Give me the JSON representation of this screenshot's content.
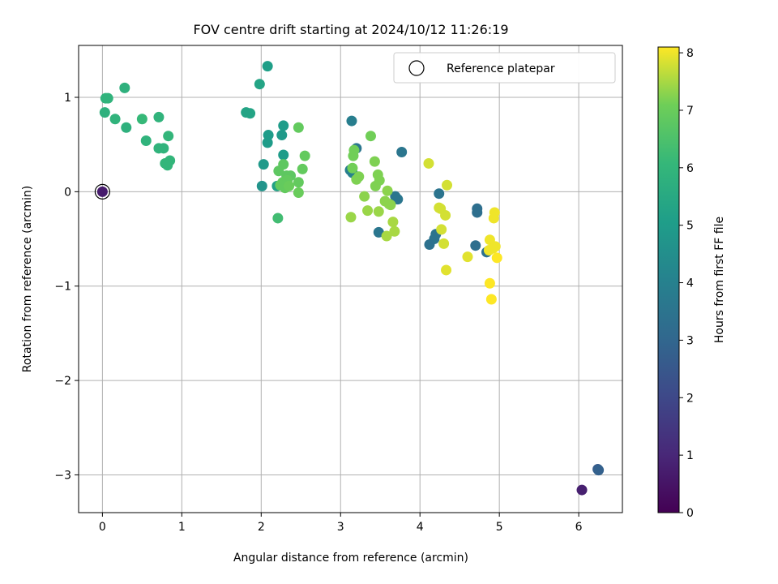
{
  "chart_data": {
    "type": "scatter",
    "title": "FOV centre drift starting at 2024/10/12 11:26:19",
    "xlabel": "Angular distance from reference (arcmin)",
    "ylabel": "Rotation from reference (arcmin)",
    "xlim": [
      -0.3,
      6.55
    ],
    "ylim": [
      -3.4,
      1.55
    ],
    "xticks": [
      0,
      1,
      2,
      3,
      4,
      5,
      6
    ],
    "xtick_labels": [
      "0",
      "1",
      "2",
      "3",
      "4",
      "5",
      "6"
    ],
    "yticks": [
      -3,
      -2,
      -1,
      0,
      1
    ],
    "ytick_labels": [
      "−3",
      "−2",
      "−1",
      "0",
      "1"
    ],
    "grid": true,
    "legend": {
      "position": "top-right",
      "entries": [
        "Reference platepar"
      ]
    },
    "reference_point": {
      "x": 0,
      "y": 0,
      "hours": 0.7
    },
    "colorbar": {
      "label": "Hours from first FF file",
      "range": [
        0,
        8.1
      ],
      "ticks": [
        0,
        1,
        2,
        3,
        4,
        5,
        6,
        7,
        8
      ],
      "tick_labels": [
        "0",
        "1",
        "2",
        "3",
        "4",
        "5",
        "6",
        "7",
        "8"
      ],
      "colormap": "viridis"
    },
    "points": [
      {
        "x": 6.04,
        "y": -3.16,
        "hours": 0.8
      },
      {
        "x": 6.24,
        "y": -2.94,
        "hours": 2.6
      },
      {
        "x": 6.25,
        "y": -2.95,
        "hours": 2.8
      },
      {
        "x": 4.72,
        "y": -0.18,
        "hours": 3.3
      },
      {
        "x": 4.72,
        "y": -0.22,
        "hours": 3.3
      },
      {
        "x": 4.7,
        "y": -0.57,
        "hours": 3.3
      },
      {
        "x": 4.84,
        "y": -0.64,
        "hours": 3.4
      },
      {
        "x": 4.24,
        "y": -0.02,
        "hours": 3.5
      },
      {
        "x": 4.2,
        "y": -0.45,
        "hours": 3.5
      },
      {
        "x": 4.18,
        "y": -0.5,
        "hours": 3.5
      },
      {
        "x": 4.12,
        "y": -0.56,
        "hours": 3.4
      },
      {
        "x": 3.77,
        "y": 0.42,
        "hours": 3.6
      },
      {
        "x": 3.69,
        "y": -0.05,
        "hours": 3.6
      },
      {
        "x": 3.72,
        "y": -0.08,
        "hours": 3.6
      },
      {
        "x": 3.48,
        "y": -0.43,
        "hours": 3.6
      },
      {
        "x": 3.2,
        "y": 0.46,
        "hours": 3.6
      },
      {
        "x": 3.14,
        "y": 0.75,
        "hours": 3.9
      },
      {
        "x": 3.12,
        "y": 0.23,
        "hours": 3.9
      },
      {
        "x": 3.15,
        "y": 0.2,
        "hours": 4.0
      },
      {
        "x": 2.01,
        "y": 0.06,
        "hours": 4.7
      },
      {
        "x": 2.03,
        "y": 0.29,
        "hours": 4.9
      },
      {
        "x": 2.08,
        "y": 0.52,
        "hours": 5.0
      },
      {
        "x": 2.09,
        "y": 0.6,
        "hours": 5.0
      },
      {
        "x": 2.26,
        "y": 0.6,
        "hours": 4.9
      },
      {
        "x": 2.28,
        "y": 0.7,
        "hours": 5.0
      },
      {
        "x": 2.28,
        "y": 0.39,
        "hours": 5.0
      },
      {
        "x": 2.2,
        "y": 0.06,
        "hours": 5.2
      },
      {
        "x": 2.08,
        "y": 1.33,
        "hours": 5.1
      },
      {
        "x": 1.98,
        "y": 1.14,
        "hours": 5.3
      },
      {
        "x": 1.81,
        "y": 0.84,
        "hours": 5.3
      },
      {
        "x": 1.86,
        "y": 0.83,
        "hours": 5.3
      },
      {
        "x": 0.28,
        "y": 1.1,
        "hours": 5.8
      },
      {
        "x": 0.04,
        "y": 0.99,
        "hours": 5.9
      },
      {
        "x": 0.07,
        "y": 0.99,
        "hours": 5.9
      },
      {
        "x": 0.03,
        "y": 0.84,
        "hours": 5.8
      },
      {
        "x": 0.16,
        "y": 0.77,
        "hours": 5.9
      },
      {
        "x": 0.3,
        "y": 0.68,
        "hours": 5.8
      },
      {
        "x": 0.5,
        "y": 0.77,
        "hours": 6.1
      },
      {
        "x": 0.71,
        "y": 0.79,
        "hours": 5.9
      },
      {
        "x": 0.55,
        "y": 0.54,
        "hours": 5.9
      },
      {
        "x": 0.71,
        "y": 0.46,
        "hours": 5.9
      },
      {
        "x": 0.77,
        "y": 0.46,
        "hours": 5.9
      },
      {
        "x": 0.83,
        "y": 0.59,
        "hours": 6.0
      },
      {
        "x": 0.85,
        "y": 0.33,
        "hours": 6.0
      },
      {
        "x": 0.82,
        "y": 0.28,
        "hours": 6.0
      },
      {
        "x": 0.79,
        "y": 0.3,
        "hours": 6.0
      },
      {
        "x": 2.21,
        "y": -0.28,
        "hours": 6.3
      },
      {
        "x": 2.47,
        "y": 0.68,
        "hours": 6.9
      },
      {
        "x": 2.55,
        "y": 0.38,
        "hours": 6.9
      },
      {
        "x": 2.52,
        "y": 0.24,
        "hours": 6.9
      },
      {
        "x": 2.28,
        "y": 0.29,
        "hours": 6.8
      },
      {
        "x": 2.22,
        "y": 0.22,
        "hours": 6.8
      },
      {
        "x": 2.32,
        "y": 0.17,
        "hours": 6.8
      },
      {
        "x": 2.37,
        "y": 0.17,
        "hours": 6.8
      },
      {
        "x": 2.27,
        "y": 0.1,
        "hours": 6.9
      },
      {
        "x": 2.33,
        "y": 0.12,
        "hours": 6.9
      },
      {
        "x": 2.24,
        "y": 0.07,
        "hours": 6.9
      },
      {
        "x": 2.3,
        "y": 0.04,
        "hours": 6.9
      },
      {
        "x": 2.35,
        "y": 0.06,
        "hours": 7.0
      },
      {
        "x": 2.47,
        "y": 0.1,
        "hours": 6.9
      },
      {
        "x": 2.47,
        "y": -0.01,
        "hours": 7.0
      },
      {
        "x": 3.38,
        "y": 0.59,
        "hours": 7.1
      },
      {
        "x": 3.17,
        "y": 0.44,
        "hours": 7.1
      },
      {
        "x": 3.16,
        "y": 0.38,
        "hours": 7.1
      },
      {
        "x": 3.15,
        "y": 0.25,
        "hours": 7.1
      },
      {
        "x": 3.43,
        "y": 0.32,
        "hours": 7.2
      },
      {
        "x": 3.47,
        "y": 0.18,
        "hours": 7.2
      },
      {
        "x": 3.49,
        "y": 0.12,
        "hours": 7.2
      },
      {
        "x": 3.2,
        "y": 0.13,
        "hours": 7.2
      },
      {
        "x": 3.23,
        "y": 0.16,
        "hours": 7.2
      },
      {
        "x": 3.44,
        "y": 0.06,
        "hours": 7.2
      },
      {
        "x": 3.59,
        "y": 0.01,
        "hours": 7.3
      },
      {
        "x": 3.3,
        "y": -0.05,
        "hours": 7.3
      },
      {
        "x": 3.56,
        "y": -0.1,
        "hours": 7.3
      },
      {
        "x": 3.61,
        "y": -0.13,
        "hours": 7.3
      },
      {
        "x": 3.63,
        "y": -0.14,
        "hours": 7.3
      },
      {
        "x": 3.34,
        "y": -0.2,
        "hours": 7.4
      },
      {
        "x": 3.48,
        "y": -0.21,
        "hours": 7.4
      },
      {
        "x": 3.13,
        "y": -0.27,
        "hours": 7.4
      },
      {
        "x": 3.66,
        "y": -0.32,
        "hours": 7.5
      },
      {
        "x": 3.68,
        "y": -0.42,
        "hours": 7.5
      },
      {
        "x": 3.58,
        "y": -0.47,
        "hours": 7.5
      },
      {
        "x": 4.11,
        "y": 0.3,
        "hours": 7.8
      },
      {
        "x": 4.34,
        "y": 0.07,
        "hours": 7.8
      },
      {
        "x": 4.24,
        "y": -0.17,
        "hours": 7.8
      },
      {
        "x": 4.26,
        "y": -0.18,
        "hours": 7.8
      },
      {
        "x": 4.32,
        "y": -0.25,
        "hours": 7.8
      },
      {
        "x": 4.27,
        "y": -0.4,
        "hours": 7.8
      },
      {
        "x": 4.3,
        "y": -0.55,
        "hours": 7.8
      },
      {
        "x": 4.33,
        "y": -0.83,
        "hours": 7.9
      },
      {
        "x": 4.6,
        "y": -0.69,
        "hours": 7.9
      },
      {
        "x": 4.94,
        "y": -0.22,
        "hours": 8.0
      },
      {
        "x": 4.93,
        "y": -0.28,
        "hours": 8.0
      },
      {
        "x": 4.88,
        "y": -0.51,
        "hours": 8.0
      },
      {
        "x": 4.87,
        "y": -0.62,
        "hours": 8.0
      },
      {
        "x": 4.92,
        "y": -0.6,
        "hours": 8.0
      },
      {
        "x": 4.95,
        "y": -0.58,
        "hours": 8.0
      },
      {
        "x": 4.97,
        "y": -0.7,
        "hours": 8.1
      },
      {
        "x": 4.88,
        "y": -0.97,
        "hours": 8.1
      },
      {
        "x": 4.9,
        "y": -1.14,
        "hours": 8.1
      }
    ]
  }
}
